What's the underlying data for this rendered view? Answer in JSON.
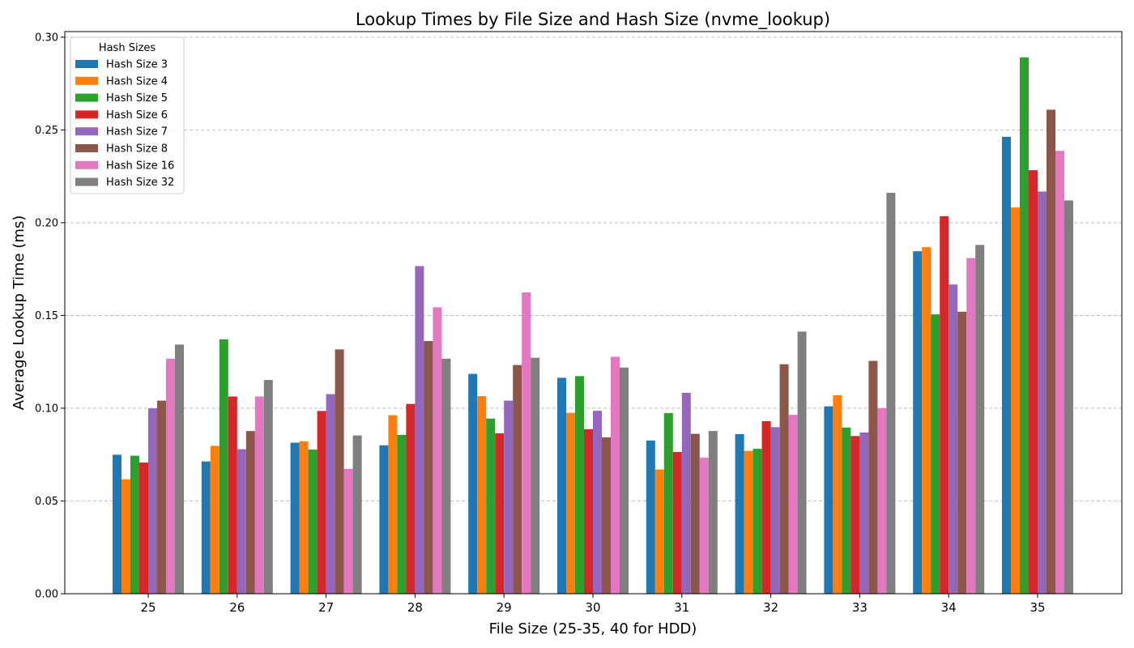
{
  "chart_data": {
    "type": "bar",
    "title": "Lookup Times by File Size and Hash Size (nvme_lookup)",
    "xlabel": "File Size (25-35, 40 for HDD)",
    "ylabel": "Average Lookup Time (ms)",
    "ylim": [
      0,
      0.303
    ],
    "yticks": [
      "0.00",
      "0.05",
      "0.10",
      "0.15",
      "0.20",
      "0.25",
      "0.30"
    ],
    "grid": "horizontal dashed",
    "legend_title": "Hash Sizes",
    "legend_position": "top-left",
    "categories": [
      "25",
      "26",
      "27",
      "28",
      "29",
      "30",
      "31",
      "32",
      "33",
      "34",
      "35"
    ],
    "series": [
      {
        "name": "Hash Size 3",
        "color": "#1f77b4",
        "values": [
          0.0749,
          0.0713,
          0.0814,
          0.08,
          0.1185,
          0.1164,
          0.0826,
          0.086,
          0.101,
          0.1846,
          0.2463
        ]
      },
      {
        "name": "Hash Size 4",
        "color": "#ff7f0e",
        "values": [
          0.0617,
          0.0797,
          0.0822,
          0.0962,
          0.1065,
          0.0975,
          0.067,
          0.077,
          0.107,
          0.1868,
          0.2082
        ]
      },
      {
        "name": "Hash Size 5",
        "color": "#2ca02c",
        "values": [
          0.0744,
          0.1371,
          0.0777,
          0.0856,
          0.0944,
          0.1173,
          0.0974,
          0.0781,
          0.0896,
          0.1506,
          0.2891
        ]
      },
      {
        "name": "Hash Size 6",
        "color": "#d62728",
        "values": [
          0.0707,
          0.1063,
          0.0985,
          0.1023,
          0.0865,
          0.0887,
          0.0764,
          0.093,
          0.085,
          0.2035,
          0.2283
        ]
      },
      {
        "name": "Hash Size 7",
        "color": "#9467bd",
        "values": [
          0.0999,
          0.0779,
          0.1076,
          0.1766,
          0.1041,
          0.0986,
          0.1083,
          0.0898,
          0.0869,
          0.1667,
          0.2168
        ]
      },
      {
        "name": "Hash Size 8",
        "color": "#8c564b",
        "values": [
          0.1041,
          0.0877,
          0.1317,
          0.1362,
          0.1233,
          0.0843,
          0.0862,
          0.1237,
          0.1255,
          0.152,
          0.2609
        ]
      },
      {
        "name": "Hash Size 16",
        "color": "#e377c2",
        "values": [
          0.1267,
          0.1063,
          0.0673,
          0.1544,
          0.1624,
          0.1277,
          0.0733,
          0.0964,
          0.1,
          0.1809,
          0.2387
        ]
      },
      {
        "name": "Hash Size 32",
        "color": "#7f7f7f",
        "values": [
          0.1343,
          0.1152,
          0.0853,
          0.1267,
          0.1272,
          0.1219,
          0.0877,
          0.1413,
          0.2161,
          0.188,
          0.212
        ]
      }
    ]
  }
}
